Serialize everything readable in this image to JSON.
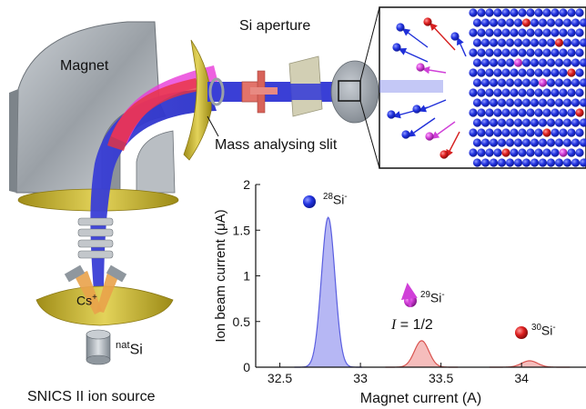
{
  "labels": {
    "magnet": "Magnet",
    "si_aperture": "Si aperture",
    "mass_slit": "Mass analysing slit",
    "cs_ion": "Cs",
    "cs_charge": "+",
    "source_sup": "nat",
    "source_base": "Si",
    "snics": "SNICS II ion source"
  },
  "peak_labels": {
    "si28_sup": "28",
    "si28_base": "Si",
    "si28_charge": "-",
    "si29_sup": "29",
    "si29_base": "Si",
    "si29_charge": "-",
    "spin_sym": "I",
    "spin_val": " = 1/2",
    "si30_sup": "30",
    "si30_base": "Si",
    "si30_charge": "-"
  },
  "colors": {
    "beam": "#3a3fd6",
    "si28_fill": "#a9aaf2",
    "si28_line": "#5a5ee0",
    "si29_fill": "#f3b2b0",
    "si29_line": "#d9534f",
    "atom_blue": "#1f2fd9",
    "atom_red": "#d62020",
    "atom_magenta": "#d040d8",
    "magnet_gray": "#a8adb3",
    "slit_yellow": "#c9b830"
  },
  "chart_data": {
    "type": "area",
    "xlabel": "Magnet current (A)",
    "ylabel": "Ion beam current (μA)",
    "xlim": [
      32.35,
      34.4
    ],
    "ylim": [
      0,
      2
    ],
    "xticks": [
      32.5,
      33,
      33.5,
      34
    ],
    "xtick_labels": [
      "32.5",
      "33",
      "33.5",
      "34"
    ],
    "yticks": [
      0,
      0.5,
      1,
      1.5,
      2
    ],
    "ytick_labels": [
      "0",
      "0.5",
      "1",
      "1.5",
      "2"
    ],
    "series": [
      {
        "isotope": "28Si-",
        "center": 32.8,
        "peak": 1.64,
        "width": 0.042,
        "color_key": "si28"
      },
      {
        "isotope": "29Si-",
        "center": 33.38,
        "peak": 0.29,
        "width": 0.045,
        "color_key": "si29"
      },
      {
        "isotope": "30Si-",
        "center": 34.05,
        "peak": 0.07,
        "width": 0.05,
        "color_key": "si29"
      }
    ]
  }
}
